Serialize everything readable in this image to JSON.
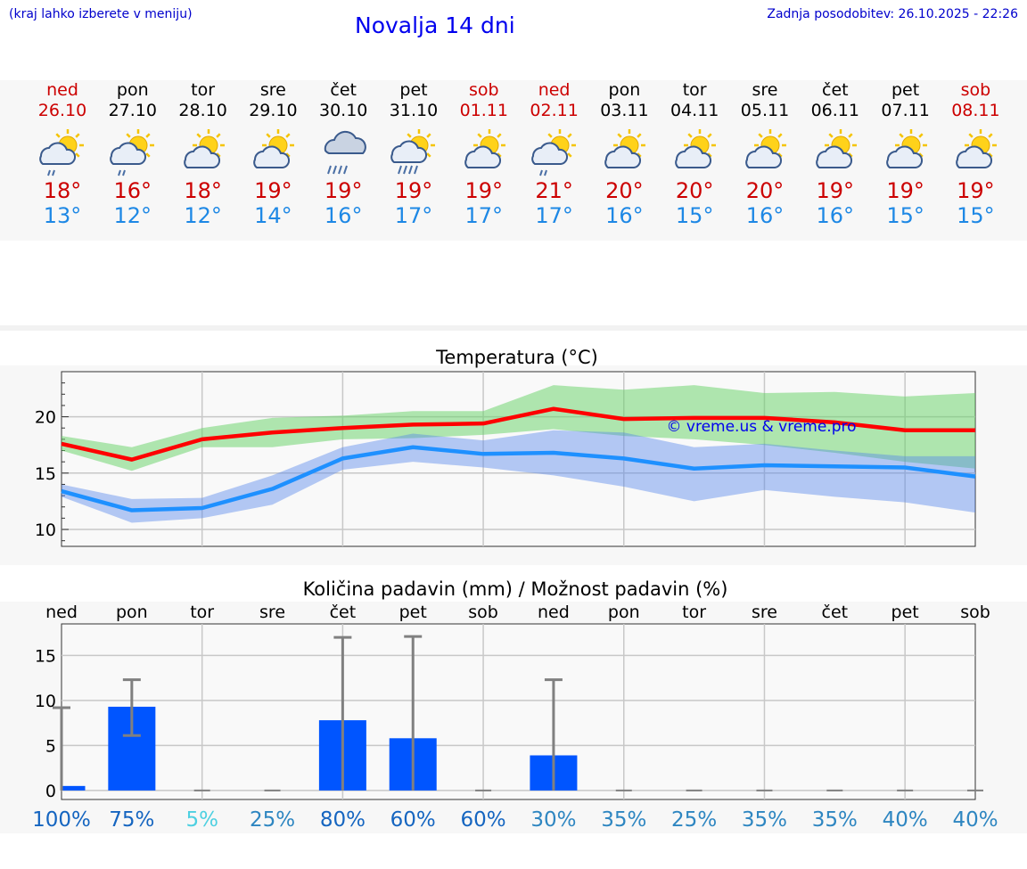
{
  "header": {
    "hint": "(kraj lahko izberete v meniju)",
    "title": "Novalja 14 dni",
    "updated": "Zadnja posodobitev: 26.10.2025 - 22:26"
  },
  "colors": {
    "weekend": "#cc0000",
    "max": "#ff0000",
    "min": "#1e90ff",
    "bar": "#0055ff"
  },
  "days": [
    {
      "name": "ned",
      "date": "26.10",
      "tmax": "18°",
      "tmin": "13°",
      "weekend": true,
      "icon": "sun-cloud-drizzle-icon"
    },
    {
      "name": "pon",
      "date": "27.10",
      "tmax": "16°",
      "tmin": "12°",
      "weekend": false,
      "icon": "sun-cloud-drizzle-icon"
    },
    {
      "name": "tor",
      "date": "28.10",
      "tmax": "18°",
      "tmin": "12°",
      "weekend": false,
      "icon": "sun-cloud-icon"
    },
    {
      "name": "sre",
      "date": "29.10",
      "tmax": "19°",
      "tmin": "14°",
      "weekend": false,
      "icon": "sun-cloud-icon"
    },
    {
      "name": "čet",
      "date": "30.10",
      "tmax": "19°",
      "tmin": "16°",
      "weekend": false,
      "icon": "rain-cloud-icon"
    },
    {
      "name": "pet",
      "date": "31.10",
      "tmax": "19°",
      "tmin": "17°",
      "weekend": false,
      "icon": "sun-cloud-rain-icon"
    },
    {
      "name": "sob",
      "date": "01.11",
      "tmax": "19°",
      "tmin": "17°",
      "weekend": true,
      "icon": "sun-cloud-icon"
    },
    {
      "name": "ned",
      "date": "02.11",
      "tmax": "21°",
      "tmin": "17°",
      "weekend": true,
      "icon": "sun-cloud-drizzle-icon"
    },
    {
      "name": "pon",
      "date": "03.11",
      "tmax": "20°",
      "tmin": "16°",
      "weekend": false,
      "icon": "sun-cloud-icon"
    },
    {
      "name": "tor",
      "date": "04.11",
      "tmax": "20°",
      "tmin": "15°",
      "weekend": false,
      "icon": "sun-cloud-icon"
    },
    {
      "name": "sre",
      "date": "05.11",
      "tmax": "20°",
      "tmin": "16°",
      "weekend": false,
      "icon": "sun-cloud-icon"
    },
    {
      "name": "čet",
      "date": "06.11",
      "tmax": "19°",
      "tmin": "16°",
      "weekend": false,
      "icon": "sun-cloud-icon"
    },
    {
      "name": "pet",
      "date": "07.11",
      "tmax": "19°",
      "tmin": "15°",
      "weekend": false,
      "icon": "sun-cloud-icon"
    },
    {
      "name": "sob",
      "date": "08.11",
      "tmax": "19°",
      "tmin": "15°",
      "weekend": true,
      "icon": "sun-cloud-icon"
    }
  ],
  "chart_data": [
    {
      "type": "line",
      "title": "Temperatura (°C)",
      "watermark": "© vreme.us & vreme.pro",
      "ylim": [
        8.5,
        24
      ],
      "yticks": [
        10,
        15,
        20
      ],
      "grid": true,
      "x": [
        0,
        1,
        2,
        3,
        4,
        5,
        6,
        7,
        8,
        9,
        10,
        11,
        12,
        13
      ],
      "series": [
        {
          "role": "max",
          "color": "#ff0000",
          "values": [
            17.6,
            16.2,
            18.0,
            18.6,
            19.0,
            19.3,
            19.4,
            20.7,
            19.8,
            19.9,
            19.9,
            19.5,
            18.8,
            18.8
          ],
          "band_low": [
            17.0,
            15.2,
            17.3,
            17.3,
            18.0,
            18.1,
            18.4,
            18.9,
            18.3,
            18.0,
            17.5,
            16.8,
            16.0,
            15.4
          ],
          "band_high": [
            18.3,
            17.3,
            19.0,
            19.9,
            20.1,
            20.5,
            20.5,
            22.8,
            22.4,
            22.8,
            22.1,
            22.2,
            21.8,
            22.1
          ]
        },
        {
          "role": "min",
          "color": "#1e90ff",
          "values": [
            13.4,
            11.7,
            11.9,
            13.6,
            16.3,
            17.3,
            16.7,
            16.8,
            16.3,
            15.4,
            15.7,
            15.6,
            15.5,
            14.7
          ],
          "band_low": [
            12.9,
            10.6,
            11.0,
            12.2,
            15.3,
            16.0,
            15.5,
            14.8,
            13.8,
            12.5,
            13.5,
            12.9,
            12.4,
            11.5
          ],
          "band_high": [
            14.0,
            12.7,
            12.8,
            14.8,
            17.3,
            18.5,
            17.9,
            18.8,
            18.6,
            17.3,
            17.6,
            17.0,
            16.5,
            16.5
          ]
        }
      ]
    },
    {
      "type": "bar",
      "title": "Količina padavin (mm) / Možnost padavin (%)",
      "categories": [
        "ned",
        "pon",
        "tor",
        "sre",
        "čet",
        "pet",
        "sob",
        "ned",
        "pon",
        "tor",
        "sre",
        "čet",
        "pet",
        "sob"
      ],
      "ylim": [
        -1,
        18.5
      ],
      "yticks": [
        0,
        5,
        10,
        15
      ],
      "values": [
        0.5,
        9.3,
        0,
        0,
        7.8,
        5.8,
        0,
        3.9,
        0,
        0,
        0,
        0,
        0,
        0
      ],
      "error_low": [
        0,
        6.1,
        0,
        0,
        0,
        0,
        0,
        0,
        0,
        0,
        0,
        0,
        0,
        0
      ],
      "error_high": [
        9.2,
        12.3,
        0,
        0,
        17.0,
        17.1,
        0,
        12.3,
        0,
        0,
        0,
        0,
        0,
        0
      ],
      "probability_labels": [
        "100%",
        "75%",
        "5%",
        "25%",
        "80%",
        "60%",
        "60%",
        "30%",
        "35%",
        "25%",
        "35%",
        "35%",
        "40%",
        "40%"
      ],
      "probability_colors": [
        "#1565c0",
        "#1565c0",
        "#4dd0e1",
        "#2e86c1",
        "#1565c0",
        "#1565c0",
        "#1565c0",
        "#2e86c1",
        "#2e86c1",
        "#2e86c1",
        "#2e86c1",
        "#2e86c1",
        "#2e86c1",
        "#2e86c1"
      ]
    }
  ]
}
